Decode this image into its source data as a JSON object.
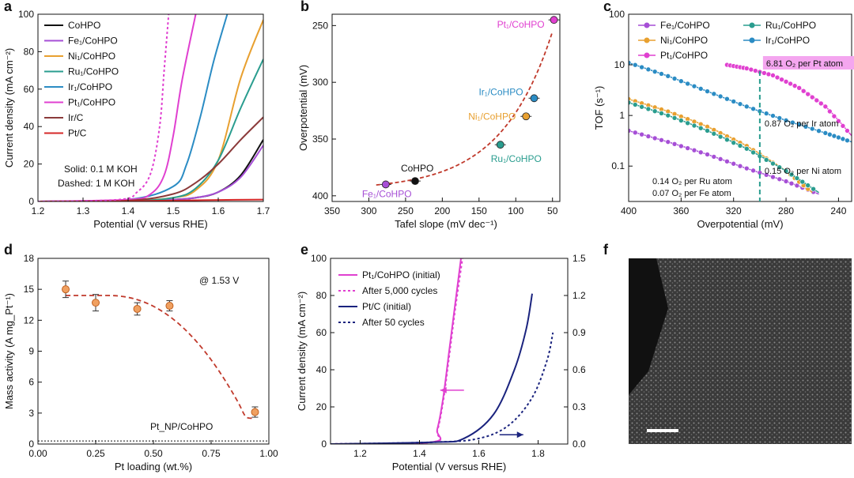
{
  "panel_labels": [
    "a",
    "b",
    "c",
    "d",
    "e",
    "f"
  ],
  "chart_data": [
    {
      "id": "a",
      "type": "line",
      "xlabel": "Potential (V versus RHE)",
      "ylabel": "Current density (mA cm⁻²)",
      "xlim": [
        1.2,
        1.7
      ],
      "ylim": [
        0,
        100
      ],
      "xticks": [
        "1.2",
        "1.3",
        "1.4",
        "1.5",
        "1.6",
        "1.7"
      ],
      "yticks": [
        "0",
        "20",
        "40",
        "60",
        "80",
        "100"
      ],
      "annotations": [
        "Solid: 0.1 M KOH",
        "Dashed: 1 M KOH"
      ],
      "series": [
        {
          "name": "CoHPO",
          "color": "#111111",
          "dash": false,
          "x": [
            1.2,
            1.4,
            1.5,
            1.55,
            1.6,
            1.65,
            1.7
          ],
          "y": [
            0,
            0.3,
            1,
            2,
            5,
            14,
            33
          ]
        },
        {
          "name": "Fe₁/CoHPO",
          "color": "#a64fd6",
          "dash": false,
          "x": [
            1.2,
            1.4,
            1.5,
            1.55,
            1.6,
            1.65,
            1.7
          ],
          "y": [
            0,
            0.3,
            1,
            2,
            5,
            13,
            30
          ]
        },
        {
          "name": "Ni₁/CoHPO",
          "color": "#e8a030",
          "dash": false,
          "x": [
            1.2,
            1.4,
            1.5,
            1.55,
            1.6,
            1.65,
            1.7
          ],
          "y": [
            0,
            0.3,
            2,
            6,
            22,
            66,
            97
          ]
        },
        {
          "name": "Ru₁/CoHPO",
          "color": "#2a9d8f",
          "dash": false,
          "x": [
            1.2,
            1.4,
            1.5,
            1.55,
            1.6,
            1.65,
            1.7
          ],
          "y": [
            0,
            0.3,
            2,
            7,
            22,
            50,
            76
          ]
        },
        {
          "name": "Ir₁/CoHPO",
          "color": "#2b8cc4",
          "dash": false,
          "x": [
            1.2,
            1.4,
            1.5,
            1.53,
            1.56,
            1.59,
            1.62
          ],
          "y": [
            0,
            1,
            8,
            20,
            45,
            75,
            100
          ]
        },
        {
          "name": "Pt₁/CoHPO",
          "color": "#e040d0",
          "dash": false,
          "x": [
            1.2,
            1.4,
            1.45,
            1.48,
            1.5,
            1.52,
            1.55
          ],
          "y": [
            0,
            1,
            4,
            14,
            35,
            65,
            100
          ]
        },
        {
          "name": "Ir/C",
          "color": "#8b3a3a",
          "dash": false,
          "x": [
            1.2,
            1.4,
            1.5,
            1.55,
            1.6,
            1.65,
            1.7
          ],
          "y": [
            0,
            0.5,
            4,
            10,
            20,
            33,
            45
          ]
        },
        {
          "name": "Pt/C",
          "color": "#d62828",
          "dash": false,
          "x": [
            1.2,
            1.4,
            1.5,
            1.6,
            1.7
          ],
          "y": [
            0,
            0.2,
            0.5,
            0.8,
            1
          ]
        },
        {
          "name": "",
          "color": "#e040d0",
          "dash": true,
          "x": [
            1.2,
            1.38,
            1.42,
            1.45,
            1.47,
            1.48,
            1.49
          ],
          "y": [
            0,
            1,
            5,
            15,
            40,
            70,
            100
          ]
        }
      ]
    },
    {
      "id": "b",
      "type": "scatter",
      "xlabel": "Tafel slope (mV dec⁻¹)",
      "ylabel": "Overpotential (mV)",
      "xlim": [
        350,
        40
      ],
      "ylim": [
        240,
        405
      ],
      "xticks": [
        "350",
        "300",
        "250",
        "200",
        "150",
        "100",
        "50"
      ],
      "yticks": [
        "250",
        "300",
        "350",
        "400"
      ],
      "points": [
        {
          "label": "Pt₁/CoHPO",
          "x": 48,
          "y": 245,
          "color": "#e040d0"
        },
        {
          "label": "Ir₁/CoHPO",
          "x": 75,
          "y": 314,
          "color": "#2b8cc4"
        },
        {
          "label": "Ni₁/CoHPO",
          "x": 86,
          "y": 330,
          "color": "#e8a030"
        },
        {
          "label": "Ru₁/CoHPO",
          "x": 121,
          "y": 355,
          "color": "#2a9d8f"
        },
        {
          "label": "CoHPO",
          "x": 237,
          "y": 387,
          "color": "#111111"
        },
        {
          "label": "Fe₁/CoHPO",
          "x": 277,
          "y": 390,
          "color": "#a64fd6"
        }
      ],
      "fit_color": "#c0392b"
    },
    {
      "id": "c",
      "type": "line",
      "xlabel": "Overpotential (mV)",
      "ylabel": "TOF (s⁻¹)",
      "xlim": [
        400,
        230
      ],
      "ylim_log": [
        0.02,
        100
      ],
      "log_y": true,
      "xticks": [
        "400",
        "360",
        "320",
        "280",
        "240"
      ],
      "yticks": [
        "0.1",
        "1",
        "10",
        "100"
      ],
      "series": [
        {
          "name": "Fe₁/CoHPO",
          "color": "#a64fd6",
          "x": [
            400,
            370,
            340,
            310,
            280,
            255
          ],
          "y": [
            0.5,
            0.3,
            0.17,
            0.09,
            0.05,
            0.028
          ]
        },
        {
          "name": "Ni₁/CoHPO",
          "color": "#e8a030",
          "x": [
            400,
            370,
            340,
            310,
            280,
            260
          ],
          "y": [
            2.1,
            1.2,
            0.6,
            0.25,
            0.08,
            0.03
          ]
        },
        {
          "name": "Ru₁/CoHPO",
          "color": "#2a9d8f",
          "x": [
            400,
            370,
            340,
            310,
            280,
            255
          ],
          "y": [
            1.8,
            1.0,
            0.5,
            0.22,
            0.08,
            0.03
          ]
        },
        {
          "name": "Ir₁/CoHPO",
          "color": "#2b8cc4",
          "x": [
            400,
            370,
            340,
            310,
            280,
            250,
            230
          ],
          "y": [
            11,
            6,
            3,
            1.5,
            0.8,
            0.45,
            0.3
          ]
        },
        {
          "name": "Pt₁/CoHPO",
          "color": "#e040d0",
          "x": [
            325,
            310,
            290,
            270,
            250,
            230
          ],
          "y": [
            10,
            8.5,
            6.2,
            3.5,
            1.5,
            0.4
          ]
        }
      ],
      "marker_x": 300,
      "annotations": [
        "6.81 O₂ per Pt atom",
        "0.87 O₂ per Ir atom",
        "0.15 O₂ per Ni atom",
        "0.14 O₂ per Ru atom",
        "0.07 O₂ per Fe atom"
      ]
    },
    {
      "id": "d",
      "type": "scatter",
      "xlabel": "Pt loading (wt.%)",
      "ylabel": "Mass activity (A mg_Pt⁻¹)",
      "xlim": [
        0,
        1.0
      ],
      "ylim": [
        0,
        18
      ],
      "xticks": [
        "0.00",
        "0.25",
        "0.50",
        "0.75",
        "1.00"
      ],
      "yticks": [
        "0",
        "3",
        "6",
        "9",
        "12",
        "15",
        "18"
      ],
      "points": [
        {
          "x": 0.12,
          "y": 15.0,
          "err": 0.8
        },
        {
          "x": 0.25,
          "y": 13.7,
          "err": 0.8
        },
        {
          "x": 0.43,
          "y": 13.1,
          "err": 0.6
        },
        {
          "x": 0.57,
          "y": 13.4,
          "err": 0.5
        },
        {
          "x": 0.94,
          "y": 3.1,
          "err": 0.5
        }
      ],
      "baseline": 0.3,
      "annotations": [
        "@ 1.53 V",
        "Pt_NP/CoHPO"
      ]
    },
    {
      "id": "e",
      "type": "line",
      "xlabel": "Potential (V versus RHE)",
      "ylabel": "Current density (mA cm⁻²)",
      "xlim": [
        1.1,
        1.9
      ],
      "ylim": [
        0,
        100
      ],
      "y2lim": [
        0,
        1.5
      ],
      "xticks": [
        "1.2",
        "1.4",
        "1.6",
        "1.8"
      ],
      "yticks": [
        "0",
        "20",
        "40",
        "60",
        "80",
        "100"
      ],
      "y2ticks": [
        "0.0",
        "0.3",
        "0.6",
        "0.9",
        "1.2",
        "1.5"
      ],
      "series": [
        {
          "name": "Pt₁/CoHPO (initial)",
          "color": "#e040d0",
          "dash": false,
          "x": [
            1.1,
            1.44,
            1.46,
            1.48,
            1.5,
            1.52,
            1.54
          ],
          "y": [
            0,
            1,
            8,
            25,
            50,
            75,
            100
          ]
        },
        {
          "name": "After 5,000 cycles",
          "color": "#e040d0",
          "dash": true,
          "x": [
            1.1,
            1.44,
            1.46,
            1.48,
            1.5,
            1.52,
            1.545
          ],
          "y": [
            0,
            1,
            7,
            23,
            47,
            72,
            100
          ]
        },
        {
          "name": "Pt/C (initial)",
          "color": "#1a237e",
          "dash": false,
          "x": [
            1.1,
            1.45,
            1.55,
            1.65,
            1.72,
            1.76,
            1.78
          ],
          "y": [
            0,
            1,
            3,
            16,
            40,
            62,
            81
          ]
        },
        {
          "name": "After 50 cycles",
          "color": "#1a237e",
          "dash": true,
          "x": [
            1.1,
            1.45,
            1.6,
            1.7,
            1.78,
            1.83,
            1.85
          ],
          "y": [
            0,
            1,
            3,
            10,
            25,
            45,
            60
          ]
        }
      ]
    }
  ]
}
